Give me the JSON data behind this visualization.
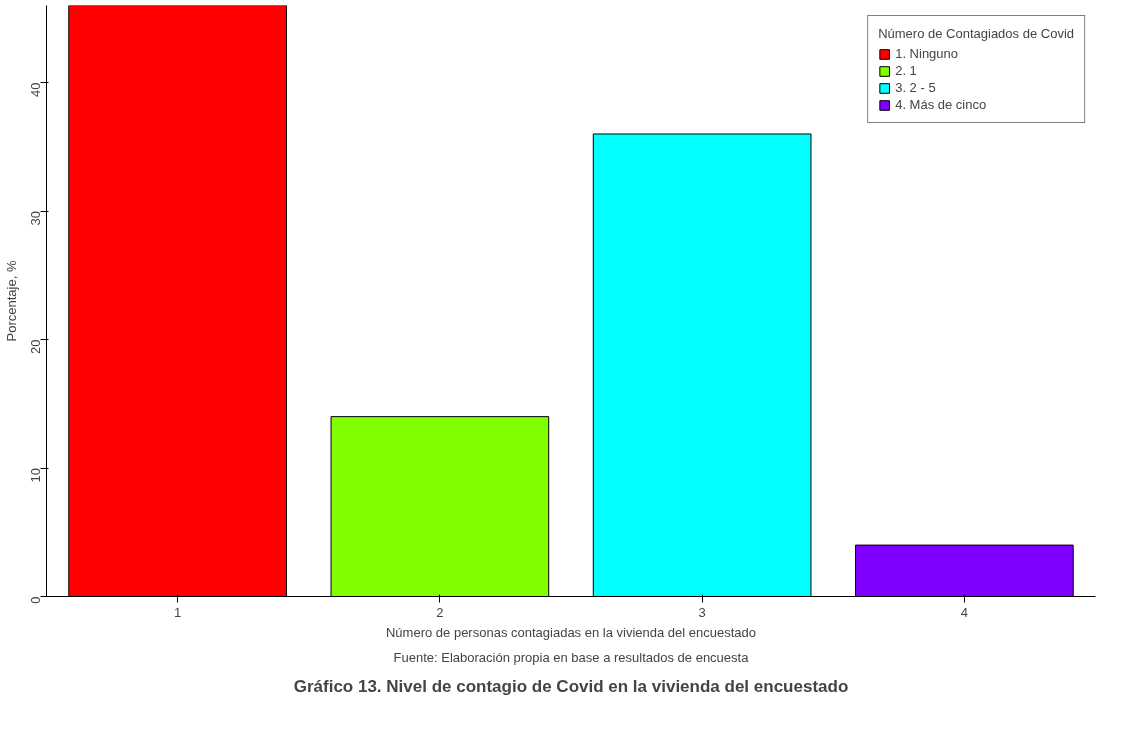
{
  "chart_data": {
    "type": "bar",
    "title": "Gráfico 13. Nivel de contagio de Covid en la vivienda del encuestado",
    "xlabel": "Número de personas contagiadas en la vivienda del encuestado",
    "ylabel": "Porcentaje, %",
    "legend_title": "Número de Contagiados de Covid",
    "annotations": [
      "Fuente: Elaboración propia en base a resultados de encuesta"
    ],
    "categories": [
      "1",
      "2",
      "3",
      "4"
    ],
    "stacked": true,
    "series": [
      {
        "name": "1. Ninguno",
        "color": "#ff0000",
        "values": [
          46,
          null,
          null,
          null
        ]
      },
      {
        "name": "2. 1",
        "color": "#80ff00",
        "values": [
          null,
          14,
          null,
          null
        ]
      },
      {
        "name": "3. 2 - 5",
        "color": "#00ffff",
        "values": [
          null,
          null,
          36,
          null
        ]
      },
      {
        "name": "4. Más de cinco",
        "color": "#8000ff",
        "values": [
          null,
          null,
          null,
          4
        ]
      }
    ],
    "ylim": [
      0,
      46
    ],
    "yticks": [
      0,
      10,
      20,
      30,
      40
    ],
    "grid": false,
    "legend": "top right"
  }
}
